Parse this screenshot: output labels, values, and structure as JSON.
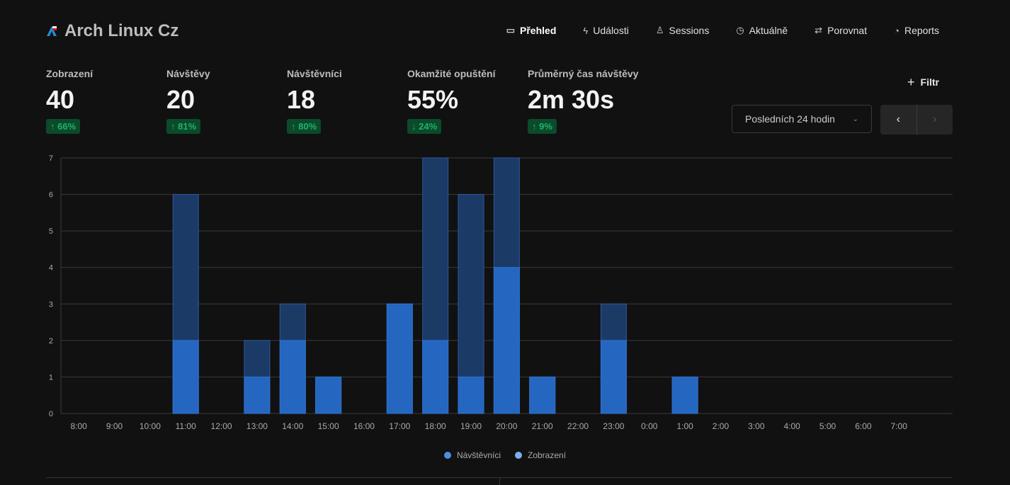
{
  "site": {
    "title": "Arch Linux Cz"
  },
  "nav": [
    {
      "label": "Přehled",
      "icon": "monitor-icon",
      "active": true
    },
    {
      "label": "Události",
      "icon": "bolt-icon"
    },
    {
      "label": "Sessions",
      "icon": "user-icon"
    },
    {
      "label": "Aktuálně",
      "icon": "clock-icon"
    },
    {
      "label": "Porovnat",
      "icon": "swap-icon"
    },
    {
      "label": "Reports",
      "icon": "pie-icon"
    }
  ],
  "metrics": [
    {
      "label": "Zobrazení",
      "value": "40",
      "change": "↑ 66%"
    },
    {
      "label": "Návštěvy",
      "value": "20",
      "change": "↑ 81%"
    },
    {
      "label": "Návštěvníci",
      "value": "18",
      "change": "↑ 80%"
    },
    {
      "label": "Okamžité opuštění",
      "value": "55%",
      "change": "↓ 24%"
    },
    {
      "label": "Průměrný čas návštěvy",
      "value": "2m 30s",
      "change": "↑ 9%"
    }
  ],
  "filter": {
    "label": "Filtr"
  },
  "range": {
    "selected": "Posledních 24 hodin"
  },
  "chart_data": {
    "type": "bar",
    "stacking": "overlay",
    "categories": [
      "8:00",
      "9:00",
      "10:00",
      "11:00",
      "12:00",
      "13:00",
      "14:00",
      "15:00",
      "16:00",
      "17:00",
      "18:00",
      "19:00",
      "20:00",
      "21:00",
      "22:00",
      "23:00",
      "0:00",
      "1:00",
      "2:00",
      "3:00",
      "4:00",
      "5:00",
      "6:00",
      "7:00"
    ],
    "series": [
      {
        "name": "Návštěvníci",
        "color": "#2566c0",
        "values": [
          0,
          0,
          0,
          2,
          0,
          1,
          2,
          1,
          0,
          3,
          2,
          1,
          4,
          1,
          0,
          2,
          0,
          1,
          0,
          0,
          0,
          0,
          0,
          0
        ]
      },
      {
        "name": "Zobrazení",
        "color": "#1c3a66",
        "values": [
          0,
          0,
          0,
          6,
          0,
          2,
          3,
          1,
          0,
          3,
          7,
          6,
          7,
          1,
          0,
          3,
          0,
          1,
          0,
          0,
          0,
          0,
          0,
          0
        ]
      }
    ],
    "legend_colors": [
      "#4a8fe0",
      "#7ab0f0"
    ],
    "yticks": [
      0,
      1,
      2,
      3,
      4,
      5,
      6,
      7
    ],
    "ylim": [
      0,
      7
    ],
    "grid": true,
    "legend": "bottom"
  }
}
